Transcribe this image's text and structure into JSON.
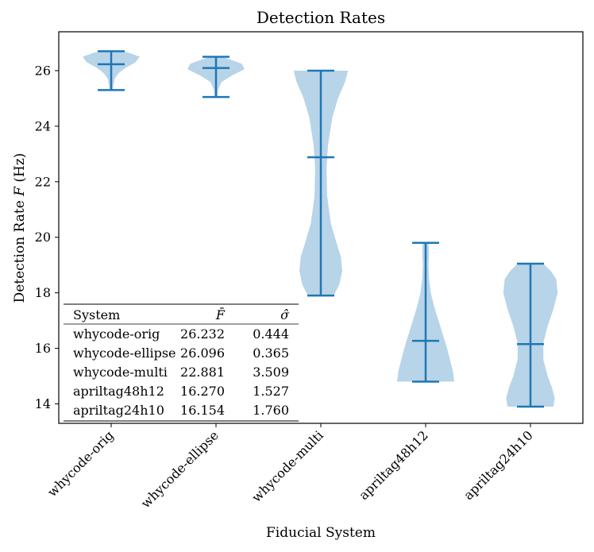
{
  "chart_data": {
    "type": "violin",
    "title": "Detection Rates",
    "xlabel": "Fiducial System",
    "ylabel": "Detection Rate F (Hz)",
    "ylabel_parts": {
      "before": "Detection Rate ",
      "var": "F",
      "after": " (Hz)"
    },
    "ylim": [
      13.3,
      27.4
    ],
    "yticks": [
      14,
      16,
      18,
      20,
      22,
      24,
      26
    ],
    "colors": {
      "body": "#b8d4e8",
      "lines": "#1f77b4"
    },
    "categories": [
      "whycode-orig",
      "whycode-ellipse",
      "whycode-multi",
      "apriltag48h12",
      "apriltag24h10"
    ],
    "violins": [
      {
        "name": "whycode-orig",
        "min": 25.3,
        "max": 26.7,
        "mean": 26.232,
        "density": [
          [
            25.3,
            0.05
          ],
          [
            25.5,
            0.08
          ],
          [
            25.7,
            0.12
          ],
          [
            25.9,
            0.25
          ],
          [
            26.1,
            0.5
          ],
          [
            26.3,
            0.85
          ],
          [
            26.5,
            1.0
          ],
          [
            26.65,
            0.6
          ],
          [
            26.7,
            0.2
          ]
        ]
      },
      {
        "name": "whycode-ellipse",
        "min": 25.05,
        "max": 26.5,
        "mean": 26.096,
        "density": [
          [
            25.05,
            0.05
          ],
          [
            25.3,
            0.07
          ],
          [
            25.6,
            0.2
          ],
          [
            25.85,
            0.6
          ],
          [
            26.05,
            1.0
          ],
          [
            26.25,
            0.9
          ],
          [
            26.4,
            0.5
          ],
          [
            26.5,
            0.2
          ]
        ]
      },
      {
        "name": "whycode-multi",
        "min": 17.9,
        "max": 26.0,
        "mean": 22.881,
        "density": [
          [
            17.9,
            0.45
          ],
          [
            18.3,
            0.65
          ],
          [
            18.8,
            0.75
          ],
          [
            19.3,
            0.7
          ],
          [
            19.8,
            0.55
          ],
          [
            20.5,
            0.35
          ],
          [
            21.5,
            0.22
          ],
          [
            22.5,
            0.2
          ],
          [
            23.3,
            0.25
          ],
          [
            24.3,
            0.4
          ],
          [
            25.0,
            0.6
          ],
          [
            25.6,
            0.85
          ],
          [
            26.0,
            0.95
          ]
        ]
      },
      {
        "name": "apriltag48h12",
        "min": 14.8,
        "max": 19.8,
        "mean": 16.27,
        "density": [
          [
            14.8,
            1.0
          ],
          [
            15.2,
            0.95
          ],
          [
            15.6,
            0.85
          ],
          [
            16.0,
            0.75
          ],
          [
            16.5,
            0.6
          ],
          [
            17.0,
            0.45
          ],
          [
            17.5,
            0.3
          ],
          [
            18.0,
            0.18
          ],
          [
            18.5,
            0.12
          ],
          [
            19.0,
            0.1
          ],
          [
            19.5,
            0.12
          ],
          [
            19.8,
            0.1
          ]
        ]
      },
      {
        "name": "apriltag24h10",
        "min": 13.9,
        "max": 19.05,
        "mean": 16.154,
        "density": [
          [
            13.9,
            0.8
          ],
          [
            14.2,
            0.85
          ],
          [
            14.6,
            0.75
          ],
          [
            15.0,
            0.6
          ],
          [
            15.6,
            0.45
          ],
          [
            16.2,
            0.45
          ],
          [
            16.8,
            0.6
          ],
          [
            17.4,
            0.8
          ],
          [
            18.0,
            0.95
          ],
          [
            18.5,
            0.9
          ],
          [
            18.8,
            0.7
          ],
          [
            19.05,
            0.45
          ]
        ]
      }
    ],
    "table": {
      "headers": [
        "System",
        "F̄",
        "σ̂"
      ],
      "rows": [
        [
          "whycode-orig",
          "26.232",
          "0.444"
        ],
        [
          "whycode-ellipse",
          "26.096",
          "0.365"
        ],
        [
          "whycode-multi",
          "22.881",
          "3.509"
        ],
        [
          "apriltag48h12",
          "16.270",
          "1.527"
        ],
        [
          "apriltag24h10",
          "16.154",
          "1.760"
        ]
      ]
    }
  }
}
